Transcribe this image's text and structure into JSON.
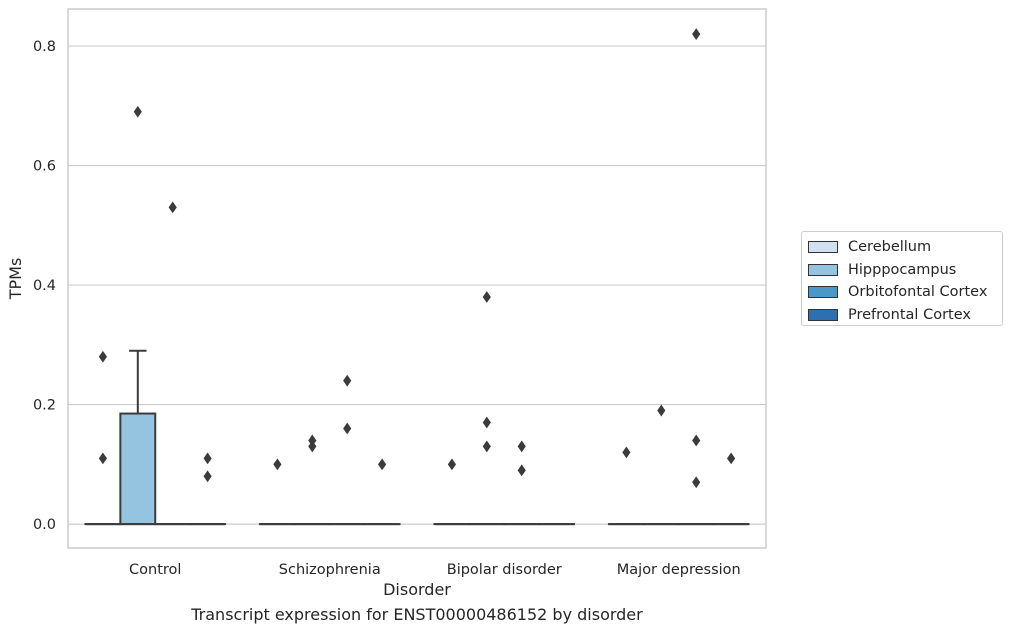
{
  "caption": "Transcript expression for ENST00000486152 by disorder",
  "chart_data": {
    "type": "box",
    "xlabel": "Disorder",
    "ylabel": "TPMs",
    "categories": [
      "Control",
      "Schizophrenia",
      "Bipolar disorder",
      "Major depression"
    ],
    "ylim": [
      -0.04,
      0.862
    ],
    "yticks": [
      "0.0",
      "0.2",
      "0.4",
      "0.6",
      "0.8"
    ],
    "grid": true,
    "legend_position": "right",
    "series": [
      {
        "name": "Cerebellum",
        "color": "#d0e1f2"
      },
      {
        "name": "Hipppocampus",
        "color": "#94c4df"
      },
      {
        "name": "Orbitofontal Cortex",
        "color": "#4a98c9"
      },
      {
        "name": "Prefrontal Cortex",
        "color": "#2e6fb0"
      }
    ],
    "boxes": [
      {
        "category": "Control",
        "series": "Cerebellum",
        "q1": 0,
        "median": 0,
        "q3": 0,
        "whisker_low": 0,
        "whisker_high": 0,
        "outliers": [
          0.28,
          0.11
        ]
      },
      {
        "category": "Control",
        "series": "Hipppocampus",
        "q1": 0,
        "median": 0,
        "q3": 0.185,
        "whisker_low": 0,
        "whisker_high": 0.29,
        "outliers": [
          0.69
        ]
      },
      {
        "category": "Control",
        "series": "Orbitofontal Cortex",
        "q1": 0,
        "median": 0,
        "q3": 0,
        "whisker_low": 0,
        "whisker_high": 0,
        "outliers": [
          0.53
        ]
      },
      {
        "category": "Control",
        "series": "Prefrontal Cortex",
        "q1": 0,
        "median": 0,
        "q3": 0,
        "whisker_low": 0,
        "whisker_high": 0,
        "outliers": [
          0.11,
          0.08
        ]
      },
      {
        "category": "Schizophrenia",
        "series": "Cerebellum",
        "q1": 0,
        "median": 0,
        "q3": 0,
        "whisker_low": 0,
        "whisker_high": 0,
        "outliers": [
          0.1
        ]
      },
      {
        "category": "Schizophrenia",
        "series": "Hipppocampus",
        "q1": 0,
        "median": 0,
        "q3": 0,
        "whisker_low": 0,
        "whisker_high": 0,
        "outliers": [
          0.14,
          0.13
        ]
      },
      {
        "category": "Schizophrenia",
        "series": "Orbitofontal Cortex",
        "q1": 0,
        "median": 0,
        "q3": 0,
        "whisker_low": 0,
        "whisker_high": 0,
        "outliers": [
          0.24,
          0.16
        ]
      },
      {
        "category": "Schizophrenia",
        "series": "Prefrontal Cortex",
        "q1": 0,
        "median": 0,
        "q3": 0,
        "whisker_low": 0,
        "whisker_high": 0,
        "outliers": [
          0.1
        ]
      },
      {
        "category": "Bipolar disorder",
        "series": "Cerebellum",
        "q1": 0,
        "median": 0,
        "q3": 0,
        "whisker_low": 0,
        "whisker_high": 0,
        "outliers": [
          0.1
        ]
      },
      {
        "category": "Bipolar disorder",
        "series": "Hipppocampus",
        "q1": 0,
        "median": 0,
        "q3": 0,
        "whisker_low": 0,
        "whisker_high": 0,
        "outliers": [
          0.38,
          0.17,
          0.13
        ]
      },
      {
        "category": "Bipolar disorder",
        "series": "Orbitofontal Cortex",
        "q1": 0,
        "median": 0,
        "q3": 0,
        "whisker_low": 0,
        "whisker_high": 0,
        "outliers": [
          0.13,
          0.09
        ]
      },
      {
        "category": "Bipolar disorder",
        "series": "Prefrontal Cortex",
        "q1": 0,
        "median": 0,
        "q3": 0,
        "whisker_low": 0,
        "whisker_high": 0,
        "outliers": []
      },
      {
        "category": "Major depression",
        "series": "Cerebellum",
        "q1": 0,
        "median": 0,
        "q3": 0,
        "whisker_low": 0,
        "whisker_high": 0,
        "outliers": [
          0.12
        ]
      },
      {
        "category": "Major depression",
        "series": "Hipppocampus",
        "q1": 0,
        "median": 0,
        "q3": 0,
        "whisker_low": 0,
        "whisker_high": 0,
        "outliers": [
          0.19
        ]
      },
      {
        "category": "Major depression",
        "series": "Orbitofontal Cortex",
        "q1": 0,
        "median": 0,
        "q3": 0,
        "whisker_low": 0,
        "whisker_high": 0,
        "outliers": [
          0.82,
          0.14,
          0.07
        ]
      },
      {
        "category": "Major depression",
        "series": "Prefrontal Cortex",
        "q1": 0,
        "median": 0,
        "q3": 0,
        "whisker_low": 0,
        "whisker_high": 0,
        "outliers": [
          0.11
        ]
      }
    ]
  }
}
